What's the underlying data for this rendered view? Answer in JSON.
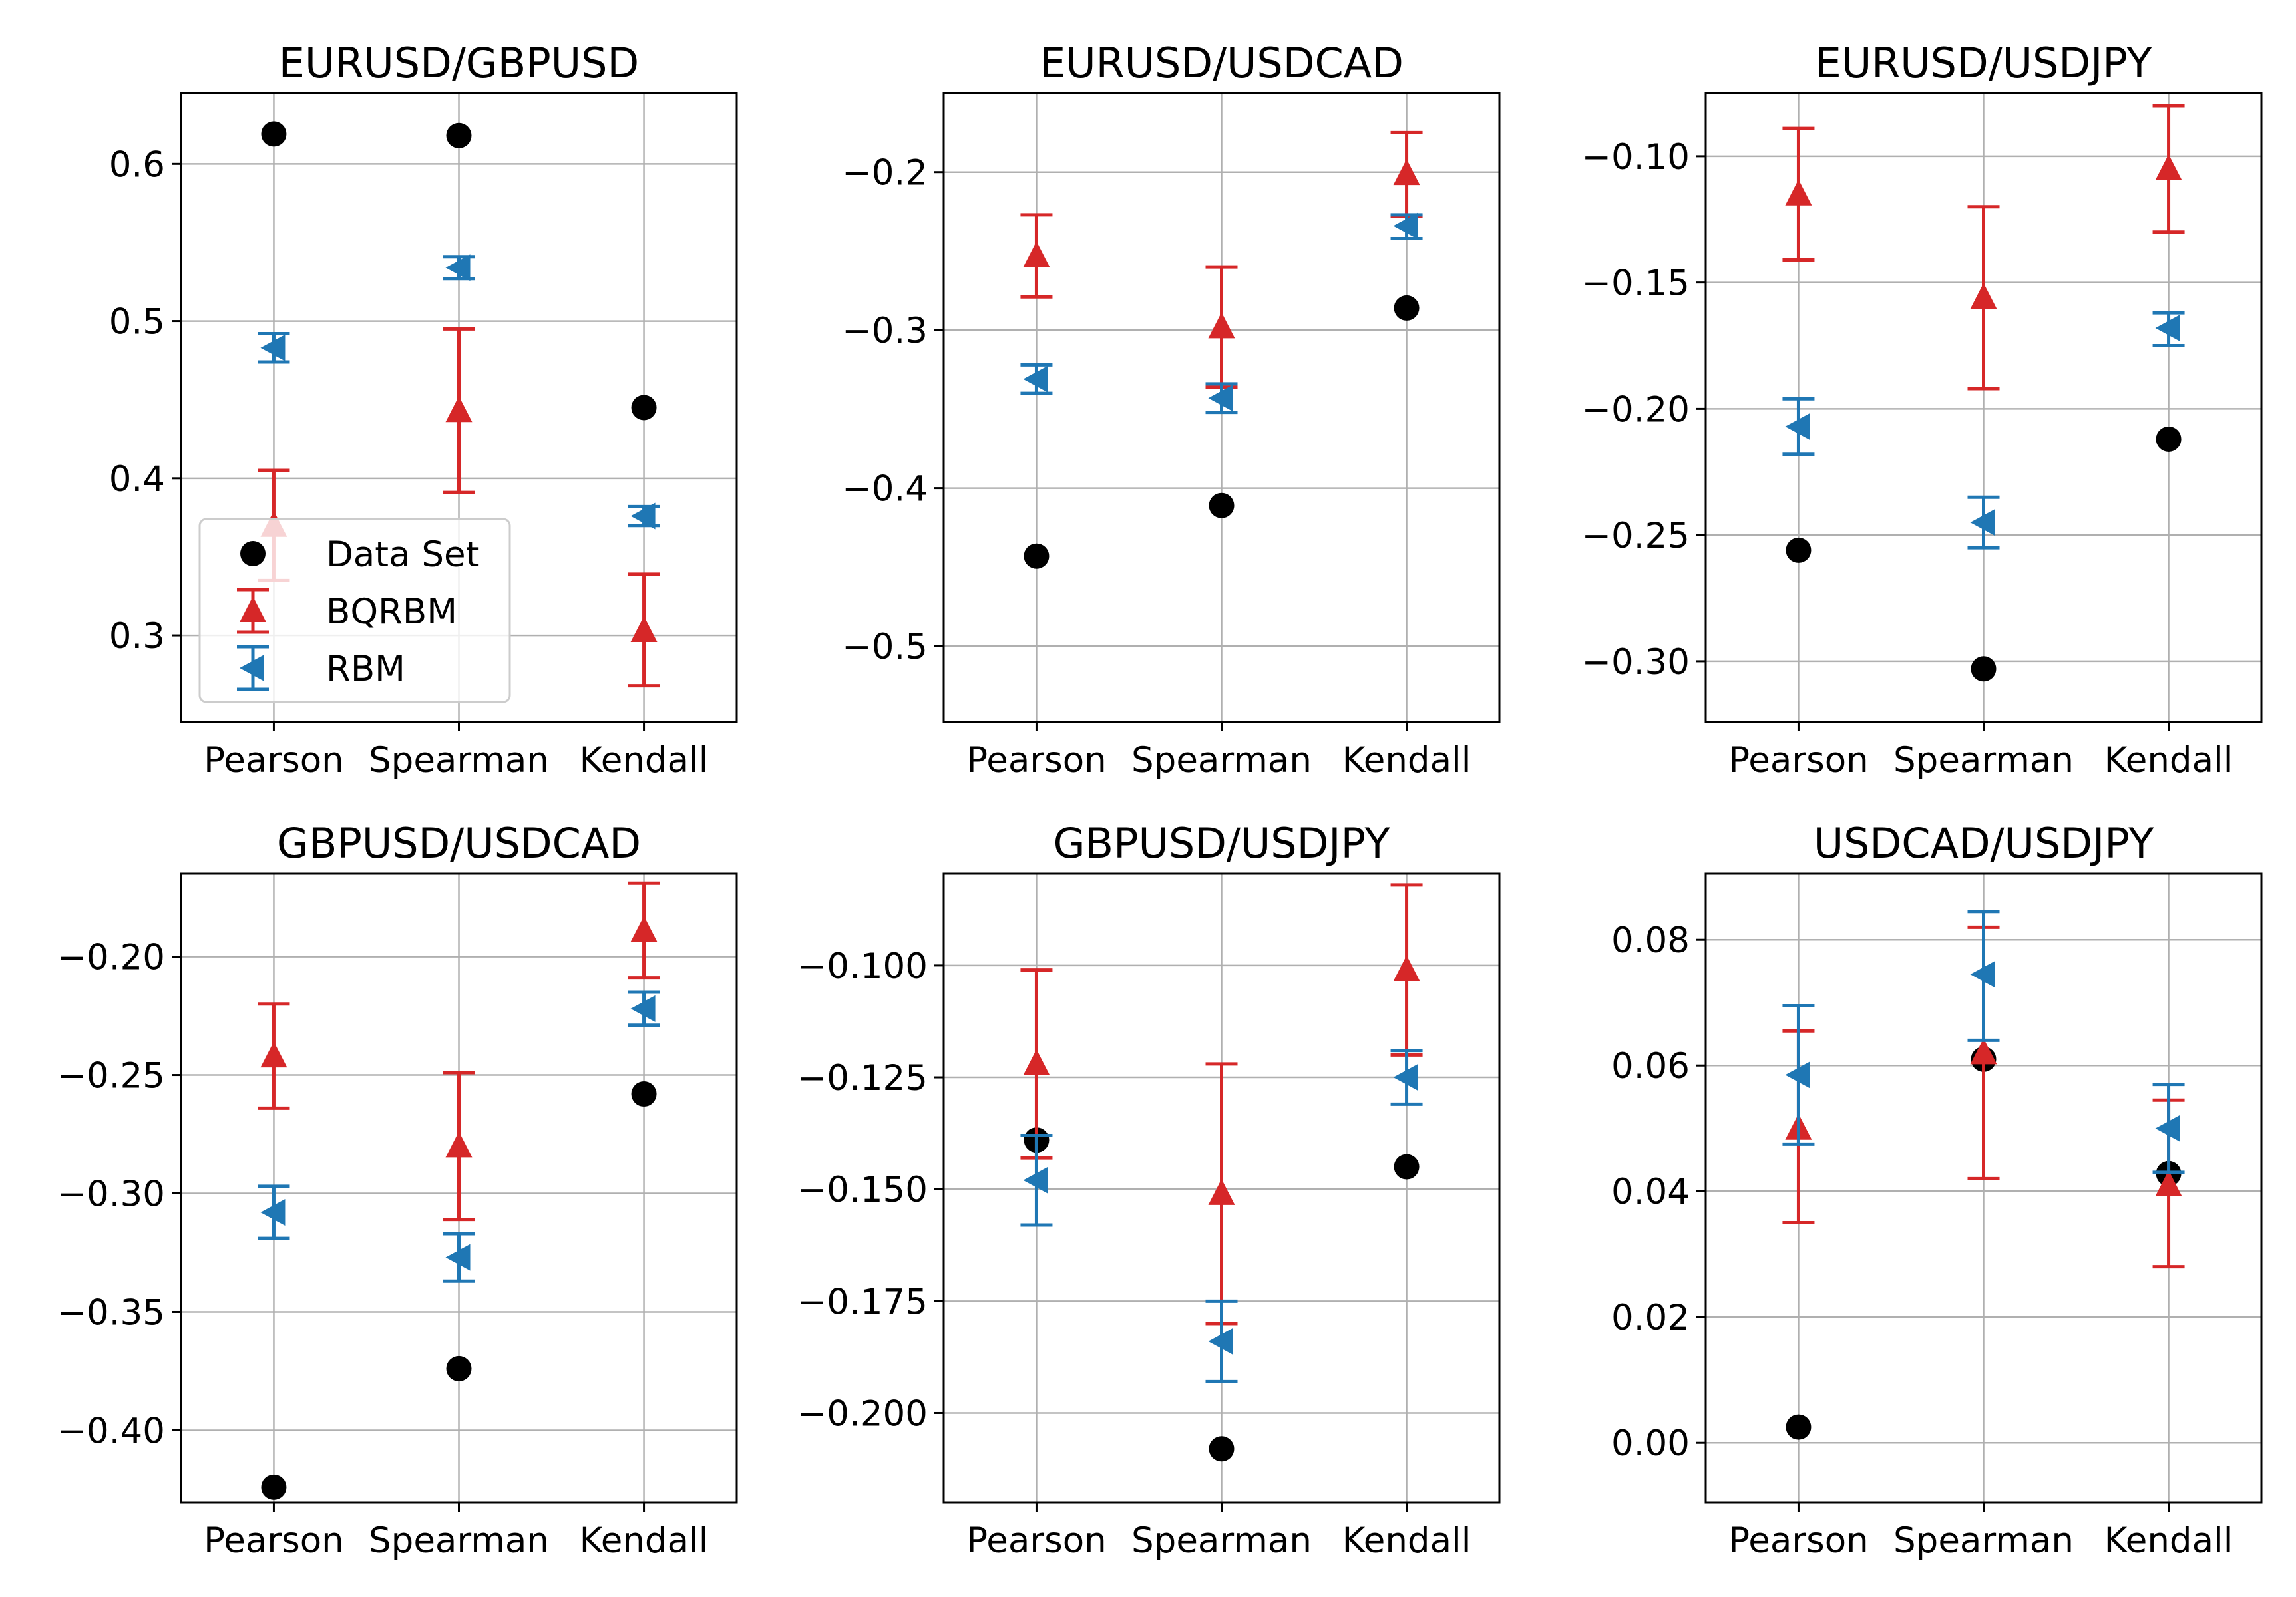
{
  "colors": {
    "dataset": "#000000",
    "bqrbm": "#d62728",
    "rbm": "#1f77b4",
    "grid": "#b0b0b0",
    "axes": "#000000"
  },
  "legend": {
    "location": "lower-left of first panel",
    "entries": [
      {
        "label": "Data Set",
        "marker": "circle",
        "color": "#000000"
      },
      {
        "label": "BQRBM",
        "marker": "triangle-up",
        "color": "#d62728"
      },
      {
        "label": "RBM",
        "marker": "triangle-left",
        "color": "#1f77b4"
      }
    ]
  },
  "chart_data": [
    {
      "type": "scatter",
      "title": "EURUSD/GBPUSD",
      "categories": [
        "Pearson",
        "Spearman",
        "Kendall"
      ],
      "ylim": [
        0.245,
        0.645
      ],
      "yticks": [
        0.3,
        0.4,
        0.5,
        0.6
      ],
      "ytick_labels": [
        "0.3",
        "0.4",
        "0.5",
        "0.6"
      ],
      "grid": true,
      "series": [
        {
          "name": "Data Set",
          "marker": "circle",
          "values": [
            0.619,
            0.618,
            0.445
          ]
        },
        {
          "name": "BQRBM",
          "marker": "triangle-up",
          "values": [
            0.37,
            0.443,
            0.303
          ],
          "err_low": [
            0.335,
            0.391,
            0.268
          ],
          "err_high": [
            0.405,
            0.495,
            0.339
          ]
        },
        {
          "name": "RBM",
          "marker": "triangle-left",
          "values": [
            0.483,
            0.534,
            0.376
          ],
          "err_low": [
            0.474,
            0.527,
            0.37
          ],
          "err_high": [
            0.492,
            0.541,
            0.382
          ]
        }
      ]
    },
    {
      "type": "scatter",
      "title": "EURUSD/USDCAD",
      "categories": [
        "Pearson",
        "Spearman",
        "Kendall"
      ],
      "ylim": [
        -0.548,
        -0.15
      ],
      "yticks": [
        -0.5,
        -0.4,
        -0.3,
        -0.2
      ],
      "ytick_labels": [
        "−0.5",
        "−0.4",
        "−0.3",
        "−0.2"
      ],
      "grid": true,
      "series": [
        {
          "name": "Data Set",
          "marker": "circle",
          "values": [
            -0.443,
            -0.411,
            -0.286
          ]
        },
        {
          "name": "BQRBM",
          "marker": "triangle-up",
          "values": [
            -0.253,
            -0.298,
            -0.201
          ],
          "err_low": [
            -0.279,
            -0.336,
            -0.228
          ],
          "err_high": [
            -0.227,
            -0.26,
            -0.175
          ]
        },
        {
          "name": "RBM",
          "marker": "triangle-left",
          "values": [
            -0.331,
            -0.343,
            -0.234
          ],
          "err_low": [
            -0.34,
            -0.352,
            -0.242
          ],
          "err_high": [
            -0.322,
            -0.334,
            -0.227
          ]
        }
      ]
    },
    {
      "type": "scatter",
      "title": "EURUSD/USDJPY",
      "categories": [
        "Pearson",
        "Spearman",
        "Kendall"
      ],
      "ylim": [
        -0.324,
        -0.075
      ],
      "yticks": [
        -0.3,
        -0.25,
        -0.2,
        -0.15,
        -0.1
      ],
      "ytick_labels": [
        "−0.30",
        "−0.25",
        "−0.20",
        "−0.15",
        "−0.10"
      ],
      "grid": true,
      "series": [
        {
          "name": "Data Set",
          "marker": "circle",
          "values": [
            -0.256,
            -0.303,
            -0.212
          ]
        },
        {
          "name": "BQRBM",
          "marker": "triangle-up",
          "values": [
            -0.115,
            -0.156,
            -0.105
          ],
          "err_low": [
            -0.141,
            -0.192,
            -0.13
          ],
          "err_high": [
            -0.089,
            -0.12,
            -0.08
          ]
        },
        {
          "name": "RBM",
          "marker": "triangle-left",
          "values": [
            -0.207,
            -0.245,
            -0.168
          ],
          "err_low": [
            -0.218,
            -0.255,
            -0.175
          ],
          "err_high": [
            -0.196,
            -0.235,
            -0.162
          ]
        }
      ]
    },
    {
      "type": "scatter",
      "title": "GBPUSD/USDCAD",
      "categories": [
        "Pearson",
        "Spearman",
        "Kendall"
      ],
      "ylim": [
        -0.4305,
        -0.165
      ],
      "yticks": [
        -0.4,
        -0.35,
        -0.3,
        -0.25,
        -0.2
      ],
      "ytick_labels": [
        "−0.40",
        "−0.35",
        "−0.30",
        "−0.25",
        "−0.20"
      ],
      "grid": true,
      "series": [
        {
          "name": "Data Set",
          "marker": "circle",
          "values": [
            -0.424,
            -0.374,
            -0.258
          ]
        },
        {
          "name": "BQRBM",
          "marker": "triangle-up",
          "values": [
            -0.242,
            -0.28,
            -0.189
          ],
          "err_low": [
            -0.264,
            -0.311,
            -0.209
          ],
          "err_high": [
            -0.22,
            -0.249,
            -0.169
          ]
        },
        {
          "name": "RBM",
          "marker": "triangle-left",
          "values": [
            -0.308,
            -0.327,
            -0.222
          ],
          "err_low": [
            -0.319,
            -0.337,
            -0.229
          ],
          "err_high": [
            -0.297,
            -0.317,
            -0.215
          ]
        }
      ]
    },
    {
      "type": "scatter",
      "title": "GBPUSD/USDJPY",
      "categories": [
        "Pearson",
        "Spearman",
        "Kendall"
      ],
      "ylim": [
        -0.22,
        -0.0795
      ],
      "yticks": [
        -0.2,
        -0.175,
        -0.15,
        -0.125,
        -0.1
      ],
      "ytick_labels": [
        "−0.200",
        "−0.175",
        "−0.150",
        "−0.125",
        "−0.100"
      ],
      "grid": true,
      "series": [
        {
          "name": "Data Set",
          "marker": "circle",
          "values": [
            -0.139,
            -0.208,
            -0.145
          ]
        },
        {
          "name": "BQRBM",
          "marker": "triangle-up",
          "values": [
            -0.122,
            -0.151,
            -0.101
          ],
          "err_low": [
            -0.143,
            -0.18,
            -0.12
          ],
          "err_high": [
            -0.101,
            -0.122,
            -0.082
          ]
        },
        {
          "name": "RBM",
          "marker": "triangle-left",
          "values": [
            -0.148,
            -0.184,
            -0.125
          ],
          "err_low": [
            -0.158,
            -0.193,
            -0.131
          ],
          "err_high": [
            -0.138,
            -0.175,
            -0.119
          ]
        }
      ]
    },
    {
      "type": "scatter",
      "title": "USDCAD/USDJPY",
      "categories": [
        "Pearson",
        "Spearman",
        "Kendall"
      ],
      "ylim": [
        -0.0095,
        0.0905
      ],
      "yticks": [
        0.0,
        0.02,
        0.04,
        0.06,
        0.08
      ],
      "ytick_labels": [
        "0.00",
        "0.02",
        "0.04",
        "0.06",
        "0.08"
      ],
      "grid": true,
      "series": [
        {
          "name": "Data Set",
          "marker": "circle",
          "values": [
            0.0025,
            0.061,
            0.0428
          ]
        },
        {
          "name": "BQRBM",
          "marker": "triangle-up",
          "values": [
            0.05,
            0.062,
            0.041
          ],
          "err_low": [
            0.035,
            0.042,
            0.028
          ],
          "err_high": [
            0.0655,
            0.082,
            0.0545
          ]
        },
        {
          "name": "RBM",
          "marker": "triangle-left",
          "values": [
            0.0585,
            0.0745,
            0.05
          ],
          "err_low": [
            0.0475,
            0.064,
            0.043
          ],
          "err_high": [
            0.0695,
            0.0845,
            0.057
          ]
        }
      ]
    }
  ]
}
